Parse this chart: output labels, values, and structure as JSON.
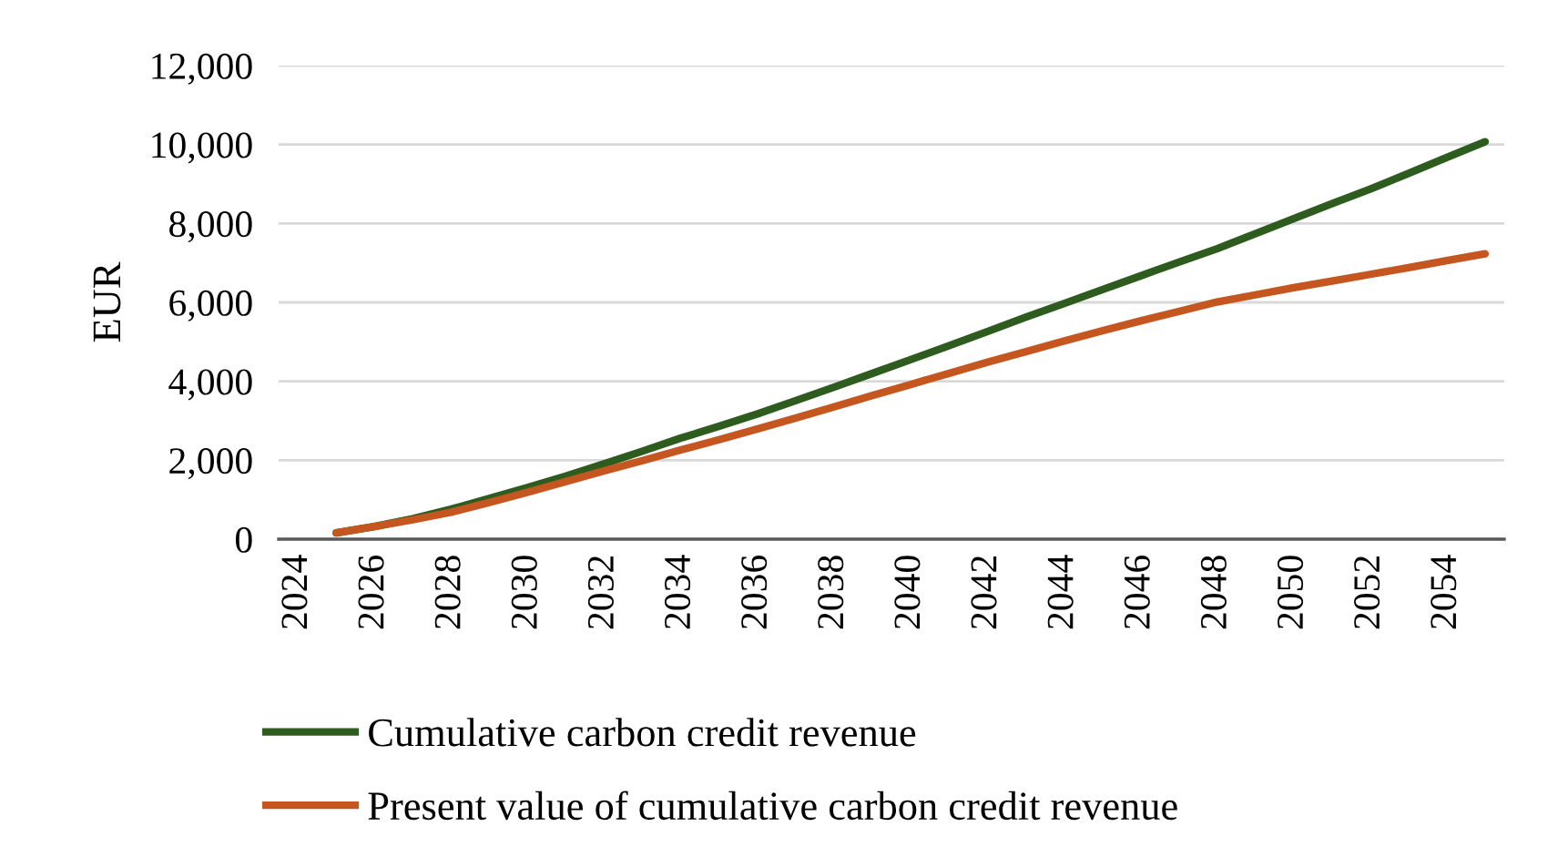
{
  "chart_data": {
    "type": "line",
    "ylabel": "EUR",
    "categories": [
      "2024",
      null,
      "2026",
      null,
      "2028",
      null,
      "2030",
      null,
      "2032",
      null,
      "2034",
      null,
      "2036",
      null,
      "2038",
      null,
      "2040",
      null,
      "2042",
      null,
      "2044",
      null,
      "2046",
      null,
      "2048",
      null,
      "2050",
      null,
      "2052",
      null,
      "2054",
      null
    ],
    "series": [
      {
        "name": "Cumulative carbon credit revenue",
        "color": "#2e5c1e",
        "values": [
          null,
          160,
          320,
          520,
          760,
          1030,
          1310,
          1600,
          1910,
          2230,
          2560,
          2860,
          3175,
          3510,
          3850,
          4200,
          4550,
          4900,
          5260,
          5620,
          5970,
          6320,
          6670,
          7020,
          7360,
          7740,
          8120,
          8500,
          8870,
          9270,
          9670,
          10070
        ]
      },
      {
        "name": "Present value of cumulative carbon credit revenue",
        "color": "#c5561f",
        "values": [
          null,
          160,
          320,
          490,
          680,
          930,
          1190,
          1460,
          1730,
          1990,
          2260,
          2520,
          2790,
          3070,
          3350,
          3640,
          3920,
          4200,
          4480,
          4750,
          5020,
          5280,
          5530,
          5770,
          6010,
          6190,
          6370,
          6540,
          6710,
          6880,
          7060,
          7230
        ]
      }
    ],
    "ylim": [
      0,
      12000
    ],
    "yticks": [
      {
        "value": 0,
        "label": "0"
      },
      {
        "value": 2000,
        "label": "2,000"
      },
      {
        "value": 4000,
        "label": "4,000"
      },
      {
        "value": 6000,
        "label": "6,000"
      },
      {
        "value": 8000,
        "label": "8,000"
      },
      {
        "value": 10000,
        "label": "10,000"
      },
      {
        "value": 12000,
        "label": "12,000"
      }
    ],
    "grid": "y",
    "legend": "bottom",
    "marker": "none",
    "line_style": "solid"
  }
}
